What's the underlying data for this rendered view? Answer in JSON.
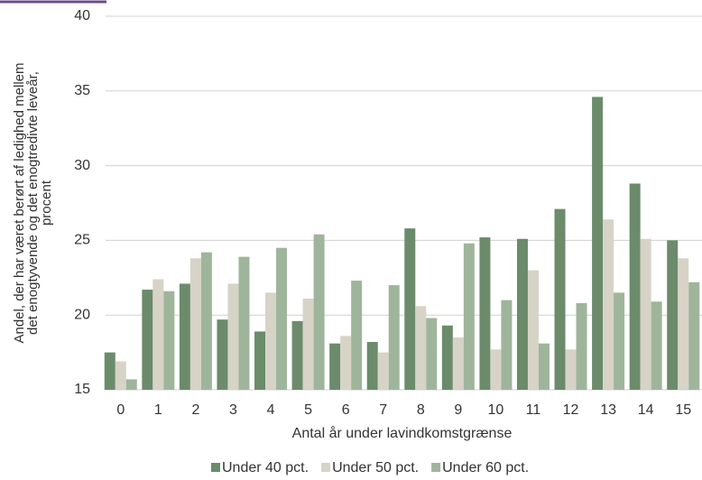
{
  "chart_data": {
    "type": "bar",
    "ylabel": [
      "Andel, der har været berørt af ledighed mellem",
      "det enogtyvende og det enogtredivte leveår,",
      "procent"
    ],
    "xlabel": "Antal år under lavindkomstgrænse",
    "categories": [
      "0",
      "1",
      "2",
      "3",
      "4",
      "5",
      "6",
      "7",
      "8",
      "9",
      "10",
      "11",
      "12",
      "13",
      "14",
      "15"
    ],
    "series": [
      {
        "name": "Under 40 pct.",
        "color": "#6b8b6b",
        "values": [
          17.5,
          21.7,
          22.1,
          19.7,
          18.9,
          19.6,
          18.1,
          18.2,
          25.8,
          19.3,
          25.2,
          25.1,
          27.1,
          34.6,
          28.8,
          25.0
        ]
      },
      {
        "name": "Under 50 pct.",
        "color": "#d7d3c6",
        "values": [
          16.9,
          22.4,
          23.8,
          22.1,
          21.5,
          21.1,
          18.6,
          17.5,
          20.6,
          18.5,
          17.7,
          23.0,
          17.7,
          26.4,
          25.1,
          23.8
        ]
      },
      {
        "name": "Under 60 pct.",
        "color": "#9fb59b",
        "values": [
          15.7,
          21.6,
          24.2,
          23.9,
          24.5,
          25.4,
          22.3,
          22.0,
          19.8,
          24.8,
          21.0,
          18.1,
          20.8,
          21.5,
          20.9,
          22.2
        ]
      }
    ],
    "ylim": [
      15,
      40
    ],
    "yticks": [
      15,
      20,
      25,
      30,
      35,
      40
    ],
    "grid": true,
    "legend": "bottom"
  }
}
